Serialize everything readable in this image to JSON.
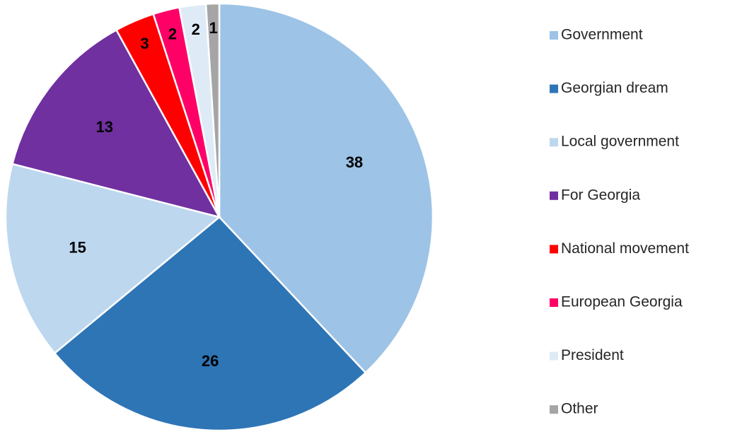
{
  "chart_data": {
    "type": "pie",
    "categories": [
      "Government",
      "Georgian dream",
      "Local government",
      "For Georgia",
      "National movement",
      "European Georgia",
      "President",
      "Other"
    ],
    "values": [
      38,
      26,
      15,
      13,
      3,
      2,
      2,
      1
    ],
    "colors": [
      "#9dc3e6",
      "#2e75b6",
      "#bdd7ee",
      "#7030a0",
      "#ff0000",
      "#ff0066",
      "#deebf7",
      "#a5a5a5"
    ],
    "legend": "right"
  }
}
